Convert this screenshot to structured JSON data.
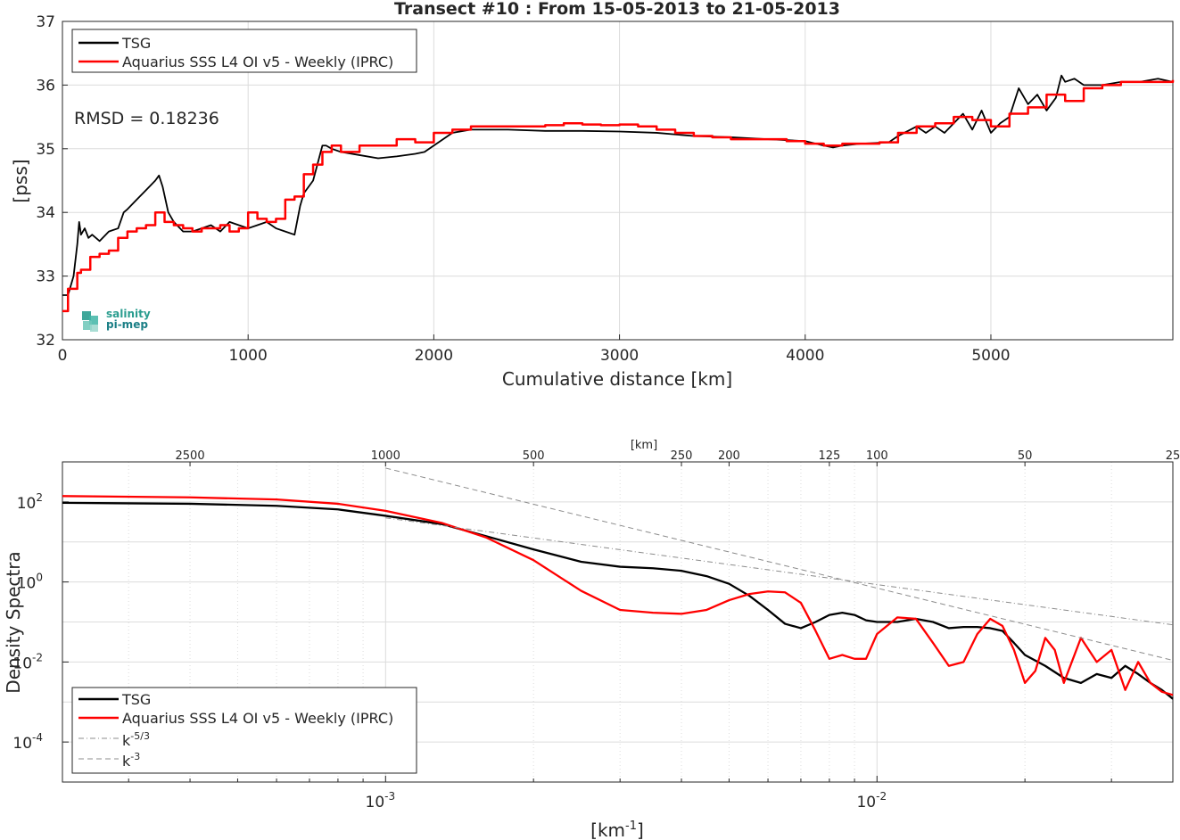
{
  "chart_data": [
    {
      "type": "line",
      "title": "Transect #10 : From 15-05-2013 to 21-05-2013",
      "xlabel": "Cumulative distance [km]",
      "ylabel": "[pss]",
      "xlim": [
        0,
        5980
      ],
      "ylim": [
        32,
        37
      ],
      "xticks": [
        0,
        1000,
        2000,
        3000,
        4000,
        5000
      ],
      "yticks": [
        32,
        33,
        34,
        35,
        36,
        37
      ],
      "grid": true,
      "legend_position": "top-left",
      "annotation": "RMSD = 0.18236",
      "logo": "salinity pi-mep",
      "series": [
        {
          "name": "TSG",
          "color": "#000000",
          "x": [
            0,
            30,
            60,
            80,
            90,
            100,
            120,
            140,
            160,
            200,
            250,
            300,
            330,
            350,
            400,
            450,
            500,
            520,
            540,
            570,
            600,
            650,
            700,
            750,
            800,
            850,
            900,
            950,
            1000,
            1050,
            1100,
            1150,
            1200,
            1250,
            1280,
            1300,
            1350,
            1400,
            1420,
            1450,
            1500,
            1600,
            1700,
            1800,
            1900,
            1950,
            2000,
            2100,
            2200,
            2400,
            2600,
            2800,
            3000,
            3200,
            3400,
            3600,
            3800,
            4000,
            4100,
            4150,
            4200,
            4300,
            4450,
            4500,
            4600,
            4650,
            4700,
            4750,
            4800,
            4850,
            4900,
            4950,
            5000,
            5050,
            5100,
            5150,
            5200,
            5250,
            5300,
            5350,
            5380,
            5400,
            5450,
            5500,
            5600,
            5700,
            5800,
            5900,
            5980
          ],
          "y": [
            32.7,
            32.7,
            33.0,
            33.5,
            33.85,
            33.65,
            33.75,
            33.6,
            33.65,
            33.55,
            33.7,
            33.75,
            34.0,
            34.05,
            34.2,
            34.35,
            34.5,
            34.58,
            34.4,
            34.0,
            33.85,
            33.7,
            33.7,
            33.75,
            33.8,
            33.7,
            33.85,
            33.8,
            33.75,
            33.8,
            33.85,
            33.75,
            33.7,
            33.65,
            34.1,
            34.3,
            34.5,
            35.05,
            35.05,
            35.0,
            34.95,
            34.9,
            34.85,
            34.88,
            34.92,
            34.95,
            35.05,
            35.25,
            35.3,
            35.3,
            35.28,
            35.28,
            35.27,
            35.25,
            35.2,
            35.18,
            35.15,
            35.12,
            35.05,
            35.02,
            35.05,
            35.08,
            35.1,
            35.2,
            35.35,
            35.25,
            35.35,
            35.25,
            35.4,
            35.55,
            35.3,
            35.6,
            35.25,
            35.4,
            35.5,
            35.95,
            35.7,
            35.85,
            35.6,
            35.8,
            36.15,
            36.05,
            36.1,
            36.0,
            36.0,
            36.05,
            36.05,
            36.1,
            36.05
          ]
        },
        {
          "name": "Aquarius SSS L4 OI v5 - Weekly (IPRC)",
          "color": "#ff0000",
          "x": [
            0,
            30,
            80,
            100,
            150,
            200,
            250,
            300,
            350,
            400,
            450,
            500,
            550,
            600,
            650,
            700,
            750,
            800,
            850,
            900,
            950,
            1000,
            1050,
            1100,
            1150,
            1200,
            1250,
            1300,
            1350,
            1400,
            1450,
            1500,
            1600,
            1700,
            1800,
            1900,
            2000,
            2100,
            2200,
            2300,
            2400,
            2500,
            2600,
            2700,
            2800,
            2900,
            3000,
            3100,
            3200,
            3300,
            3400,
            3500,
            3600,
            3700,
            3800,
            3900,
            4000,
            4100,
            4200,
            4300,
            4400,
            4500,
            4600,
            4700,
            4800,
            4900,
            5000,
            5100,
            5200,
            5300,
            5400,
            5500,
            5600,
            5700,
            5800,
            5900,
            5980
          ],
          "y": [
            32.45,
            32.8,
            33.05,
            33.1,
            33.3,
            33.35,
            33.4,
            33.6,
            33.7,
            33.75,
            33.8,
            34.0,
            33.85,
            33.8,
            33.75,
            33.7,
            33.75,
            33.75,
            33.8,
            33.7,
            33.75,
            34.0,
            33.9,
            33.85,
            33.9,
            34.2,
            34.25,
            34.6,
            34.75,
            34.95,
            35.05,
            34.95,
            35.05,
            35.05,
            35.15,
            35.1,
            35.25,
            35.3,
            35.35,
            35.35,
            35.35,
            35.35,
            35.37,
            35.4,
            35.38,
            35.37,
            35.38,
            35.35,
            35.3,
            35.25,
            35.2,
            35.18,
            35.15,
            35.15,
            35.15,
            35.12,
            35.08,
            35.05,
            35.08,
            35.08,
            35.1,
            35.25,
            35.35,
            35.4,
            35.5,
            35.45,
            35.35,
            35.55,
            35.65,
            35.85,
            35.75,
            35.95,
            36.0,
            36.05,
            36.05,
            36.05,
            36.08
          ]
        }
      ]
    },
    {
      "type": "line",
      "top_xlabel": "[km]",
      "top_xticks": [
        "2500",
        "1000",
        "500",
        "250",
        "200",
        "125",
        "100",
        "50",
        "25"
      ],
      "xlabel": "[km⁻¹]",
      "ylabel": "Density Spectra",
      "xscale": "log",
      "yscale": "log",
      "xlim": [
        0.00022,
        0.04
      ],
      "ylim": [
        1e-05,
        1000
      ],
      "grid": true,
      "legend_position": "bottom-left",
      "series": [
        {
          "name": "TSG",
          "color": "#000000",
          "x": [
            0.00022,
            0.0004,
            0.0006,
            0.0008,
            0.001,
            0.0013,
            0.0016,
            0.002,
            0.0025,
            0.003,
            0.0035,
            0.004,
            0.0045,
            0.005,
            0.0055,
            0.006,
            0.0065,
            0.007,
            0.0075,
            0.008,
            0.0085,
            0.009,
            0.0095,
            0.01,
            0.011,
            0.012,
            0.013,
            0.014,
            0.015,
            0.016,
            0.017,
            0.018,
            0.019,
            0.02,
            0.022,
            0.024,
            0.026,
            0.028,
            0.03,
            0.032,
            0.034,
            0.036,
            0.038,
            0.04
          ],
          "y": [
            95,
            90,
            80,
            65,
            45,
            28,
            14,
            6.5,
            3.2,
            2.4,
            2.2,
            1.9,
            1.4,
            0.9,
            0.45,
            0.2,
            0.09,
            0.07,
            0.1,
            0.15,
            0.17,
            0.15,
            0.11,
            0.1,
            0.1,
            0.12,
            0.1,
            0.07,
            0.075,
            0.075,
            0.07,
            0.06,
            0.03,
            0.015,
            0.008,
            0.004,
            0.003,
            0.005,
            0.004,
            0.008,
            0.005,
            0.003,
            0.002,
            0.0012
          ]
        },
        {
          "name": "Aquarius SSS L4 OI v5 - Weekly (IPRC)",
          "color": "#ff0000",
          "x": [
            0.00022,
            0.0004,
            0.0006,
            0.0008,
            0.001,
            0.0013,
            0.0016,
            0.002,
            0.0025,
            0.003,
            0.0035,
            0.004,
            0.0045,
            0.005,
            0.0055,
            0.006,
            0.0065,
            0.007,
            0.0075,
            0.008,
            0.0085,
            0.009,
            0.0095,
            0.01,
            0.011,
            0.012,
            0.013,
            0.014,
            0.015,
            0.016,
            0.017,
            0.018,
            0.019,
            0.02,
            0.021,
            0.022,
            0.023,
            0.024,
            0.026,
            0.028,
            0.03,
            0.032,
            0.034,
            0.036,
            0.038,
            0.04
          ],
          "y": [
            140,
            130,
            115,
            90,
            60,
            30,
            13,
            3.5,
            0.6,
            0.2,
            0.17,
            0.16,
            0.2,
            0.35,
            0.5,
            0.58,
            0.55,
            0.3,
            0.06,
            0.012,
            0.015,
            0.012,
            0.012,
            0.05,
            0.13,
            0.12,
            0.03,
            0.008,
            0.01,
            0.05,
            0.12,
            0.08,
            0.02,
            0.003,
            0.006,
            0.04,
            0.02,
            0.003,
            0.04,
            0.01,
            0.02,
            0.002,
            0.01,
            0.003,
            0.0018,
            0.0015
          ]
        },
        {
          "name": "k⁻⁵ᐟ³",
          "color": "#8c8c8c",
          "dash": "dashdot",
          "x": [
            0.001,
            0.04
          ],
          "y": [
            40,
            0.085
          ]
        },
        {
          "name": "k⁻³",
          "color": "#8c8c8c",
          "dash": "dash",
          "x": [
            0.001,
            0.04
          ],
          "y": [
            700,
            0.011
          ]
        }
      ],
      "legend_labels": {
        "k53_base": "k",
        "k53_sup": "-5/3",
        "k3_base": "k",
        "k3_sup": "-3"
      },
      "ytick_labels": [
        {
          "base": "10",
          "sup": "2",
          "exp": 2
        },
        {
          "base": "10",
          "sup": "0",
          "exp": 0
        },
        {
          "base": "10",
          "sup": "-2",
          "exp": -2
        },
        {
          "base": "10",
          "sup": "-4",
          "exp": -4
        }
      ],
      "xtick_labels": [
        {
          "base": "10",
          "sup": "-3",
          "value": 0.001
        },
        {
          "base": "10",
          "sup": "-2",
          "value": 0.01
        }
      ],
      "xlabel_parts": {
        "pre": "[km",
        "sup": "-1",
        "post": "]"
      }
    }
  ]
}
